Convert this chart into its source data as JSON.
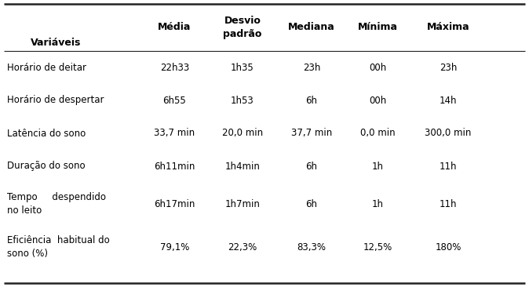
{
  "headers": [
    "Variáveis",
    "Média",
    "Desvio\npadrão",
    "Mediana",
    "Mínima",
    "Máxima"
  ],
  "rows": [
    [
      "Horário de deitar",
      "22h33",
      "1h35",
      "23h",
      "00h",
      "23h"
    ],
    [
      "Horário de despertar",
      "6h55",
      "1h53",
      "6h",
      "00h",
      "14h"
    ],
    [
      "Latência do sono",
      "33,7 min",
      "20,0 min",
      "37,7 min",
      "0,0 min",
      "300,0 min"
    ],
    [
      "Duração do sono",
      "6h11min",
      "1h4min",
      "6h",
      "1h",
      "11h"
    ],
    [
      "Tempo     despendido\nno leito",
      "6h17min",
      "1h7min",
      "6h",
      "1h",
      "11h"
    ],
    [
      "Eficiência  habitual do\nsono (%)",
      "79,1%",
      "22,3%",
      "83,3%",
      "12,5%",
      "180%"
    ]
  ],
  "background_color": "#ffffff",
  "header_font_size": 9.0,
  "cell_font_size": 8.5,
  "line_color": "#222222",
  "fig_width": 6.74,
  "fig_height": 3.66,
  "dpi": 100
}
